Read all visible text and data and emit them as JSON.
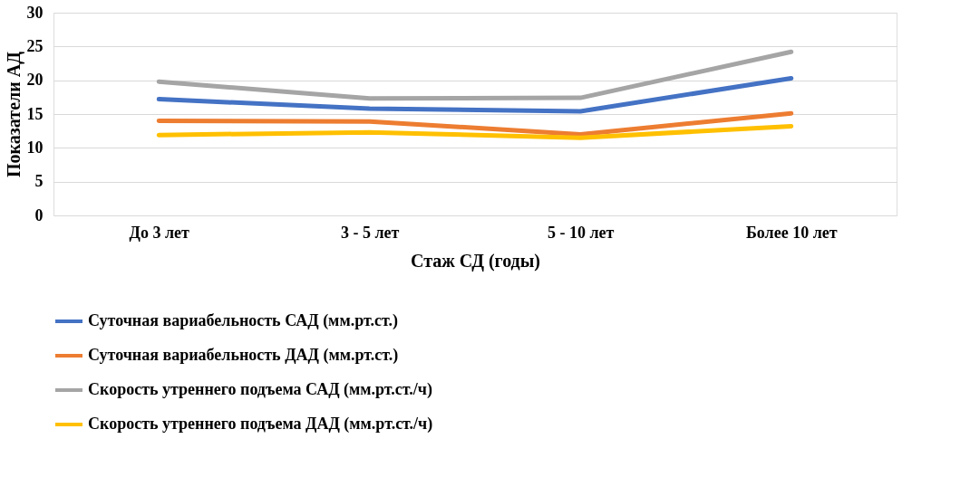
{
  "chart_data": {
    "type": "line",
    "xlabel": "Стаж СД (годы)",
    "ylabel": "Показатели АД",
    "categories": [
      "До 3 лет",
      "3 - 5 лет",
      "5 - 10 лет",
      "Более 10 лет"
    ],
    "series": [
      {
        "name": "Суточная вариабельность САД (мм.рт.ст.)",
        "color": "#4472c4",
        "values": [
          17.2,
          15.8,
          15.4,
          20.3
        ]
      },
      {
        "name": "Суточная вариабельность ДАД (мм.рт.ст.)",
        "color": "#ed7d31",
        "values": [
          14.0,
          13.9,
          12.0,
          15.1
        ]
      },
      {
        "name": "Скорость утреннего подъема САД (мм.рт.ст./ч)",
        "color": "#a5a5a5",
        "values": [
          19.8,
          17.3,
          17.4,
          24.2
        ]
      },
      {
        "name": "Скорость утреннего подъема ДАД (мм.рт.ст./ч)",
        "color": "#ffc000",
        "values": [
          11.9,
          12.3,
          11.5,
          13.2
        ]
      }
    ],
    "ylim": [
      0,
      30
    ],
    "yticks": [
      0,
      5,
      10,
      15,
      20,
      25,
      30
    ],
    "grid": "y",
    "legend": "bottom",
    "marker": "none",
    "line_style": "solid"
  }
}
